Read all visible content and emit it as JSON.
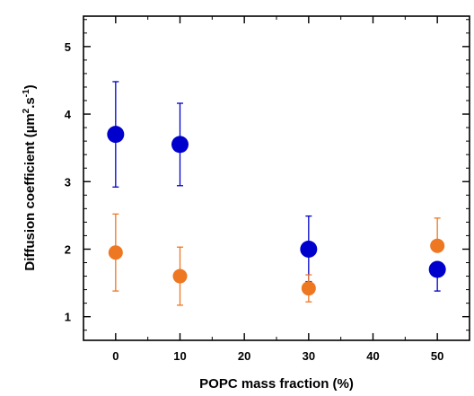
{
  "chart_data": {
    "type": "scatter",
    "title": "",
    "xlabel": "POPC mass fraction (%)",
    "ylabel_parts": [
      "Diffusion coefficient (µm",
      "2",
      ".s",
      "-1",
      ")"
    ],
    "xlim": [
      -5,
      55
    ],
    "ylim": [
      0.65,
      5.45
    ],
    "x_ticks": [
      0,
      10,
      20,
      30,
      40,
      50
    ],
    "y_ticks": [
      1,
      2,
      3,
      4,
      5
    ],
    "x_minor_step": 5,
    "y_minor_step": 0.2,
    "grid": false,
    "legend": "none",
    "series": [
      {
        "color": "#0000cc",
        "marker_size": "large",
        "points": [
          {
            "x": 0,
            "y": 3.7,
            "err_low": 2.92,
            "err_high": 4.48
          },
          {
            "x": 10,
            "y": 3.55,
            "err_low": 2.94,
            "err_high": 4.16
          },
          {
            "x": 30,
            "y": 2.0,
            "err_low": 1.52,
            "err_high": 2.49
          },
          {
            "x": 50,
            "y": 1.7,
            "err_low": 1.38,
            "err_high": 1.7
          }
        ]
      },
      {
        "color": "#ee7722",
        "marker_size": "medium",
        "points": [
          {
            "x": 0,
            "y": 1.95,
            "err_low": 1.38,
            "err_high": 2.52
          },
          {
            "x": 10,
            "y": 1.6,
            "err_low": 1.17,
            "err_high": 2.03
          },
          {
            "x": 30,
            "y": 1.42,
            "err_low": 1.22,
            "err_high": 1.62
          },
          {
            "x": 50,
            "y": 2.05,
            "err_low": 2.05,
            "err_high": 2.46
          }
        ]
      }
    ]
  }
}
